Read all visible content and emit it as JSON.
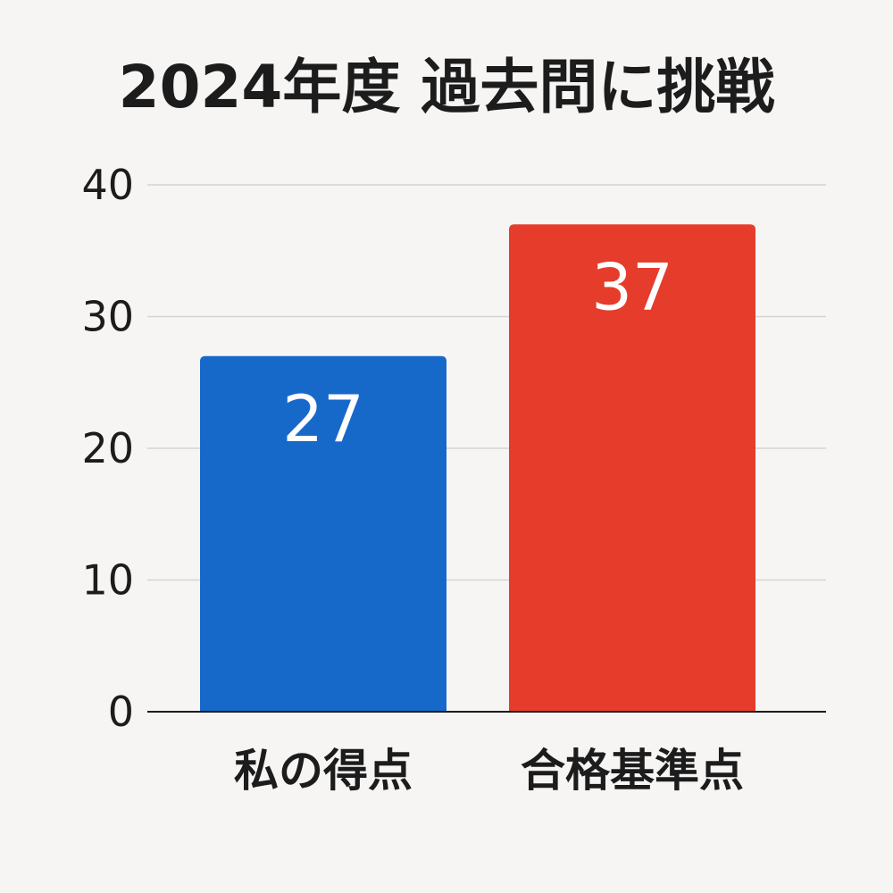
{
  "chart_data": {
    "type": "bar",
    "title": "2024年度 過去問に挑戦",
    "xlabel": "",
    "ylabel": "",
    "categories": [
      "私の得点",
      "合格基準点"
    ],
    "values": [
      27,
      37
    ],
    "data_labels": [
      "27",
      "37"
    ],
    "colors": [
      "#1769c9",
      "#e63c2b"
    ],
    "ylim": [
      0,
      40
    ],
    "yticks": [
      0,
      10,
      20,
      30,
      40
    ],
    "ytick_labels": [
      "0",
      "10",
      "20",
      "30",
      "40"
    ],
    "grid": true,
    "legend": "none"
  }
}
